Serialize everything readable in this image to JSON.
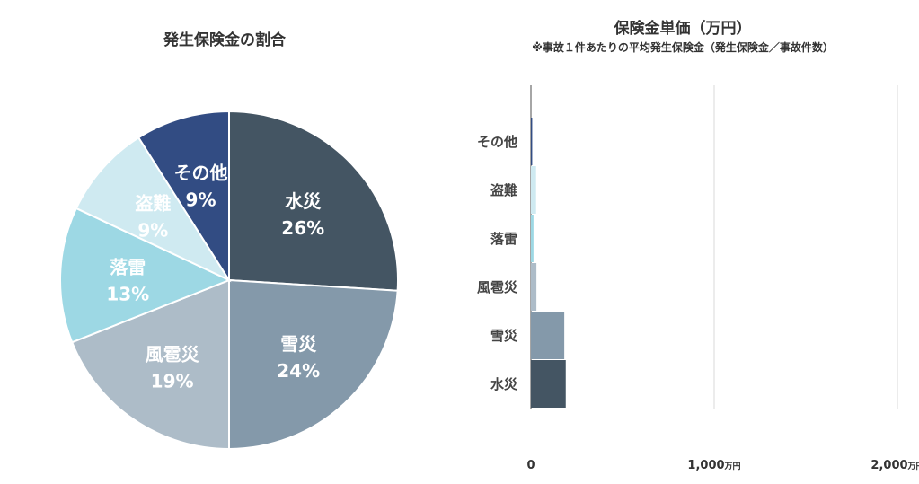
{
  "chart_data": [
    {
      "type": "pie",
      "title": "発生保険金の割合",
      "categories": [
        "水災",
        "雪災",
        "風雹災",
        "落雷",
        "盗難",
        "その他"
      ],
      "values": [
        26,
        24,
        19,
        13,
        9,
        9
      ],
      "labels": [
        "26%",
        "24%",
        "19%",
        "13%",
        "9%",
        "9%"
      ],
      "colors": [
        "#445563",
        "#8499aa",
        "#adbcc8",
        "#9dd8e4",
        "#cfeaf1",
        "#324c83"
      ]
    },
    {
      "type": "bar",
      "orientation": "horizontal",
      "title": "保険金単価（万円）",
      "subtitle": "※事故１件あたりの平均発生保険金（発生保険金／事故件数）",
      "categories": [
        "その他",
        "盗難",
        "落雷",
        "風雹災",
        "雪災",
        "水災"
      ],
      "values": [
        7,
        28,
        14,
        30,
        182,
        190
      ],
      "colors": [
        "#324c83",
        "#cfeaf1",
        "#9dd8e4",
        "#adbcc8",
        "#8499aa",
        "#445563"
      ],
      "xlim": [
        0,
        2000
      ],
      "xticks": [
        "0",
        "1,000",
        "2,000"
      ],
      "xtick_unit": "万円",
      "grid": "vertical"
    }
  ]
}
